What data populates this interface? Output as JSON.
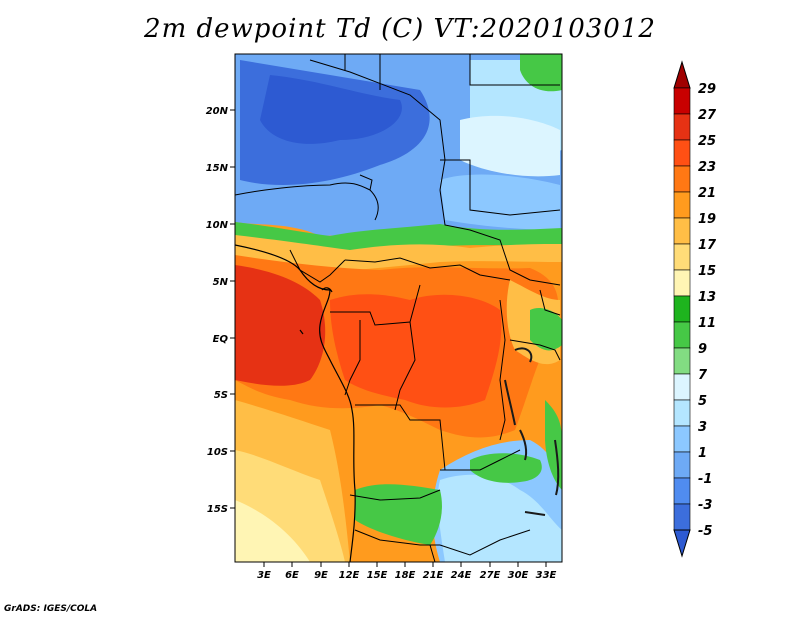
{
  "title": "2m dewpoint Td (C) VT:2020103012",
  "credit": "GrADS: IGES/COLA",
  "map": {
    "lat_labels": [
      "20N",
      "15N",
      "10N",
      "5N",
      "EQ",
      "5S",
      "10S",
      "15S"
    ],
    "lon_labels": [
      "3E",
      "6E",
      "9E",
      "12E",
      "15E",
      "18E",
      "21E",
      "24E",
      "27E",
      "30E",
      "33E"
    ]
  },
  "colorbar": {
    "labels": [
      "29",
      "27",
      "25",
      "23",
      "21",
      "19",
      "17",
      "15",
      "13",
      "11",
      "9",
      "7",
      "5",
      "3",
      "1",
      "-1",
      "-3",
      "-5"
    ],
    "colors": [
      "#a00000",
      "#c80000",
      "#e63214",
      "#ff5014",
      "#ff7814",
      "#ff9b1e",
      "#ffbe46",
      "#ffdc78",
      "#fff5b4",
      "#1eb41e",
      "#46c846",
      "#82dc82",
      "#dcf5ff",
      "#b4e6ff",
      "#8cc8ff",
      "#6eaaf5",
      "#508cf0",
      "#3c6edc",
      "#2d5ad2"
    ]
  },
  "colors": {
    "blue_dark": "#2d5ad2",
    "blue": "#508cf0",
    "blue_light": "#8cc8ff",
    "cyan_light": "#dcf5ff",
    "green": "#46c846",
    "cream": "#fff5b4",
    "yellow": "#ffdc78",
    "orange_light": "#ffbe46",
    "orange": "#ff9b1e",
    "orange_dark": "#ff7814",
    "red_orange": "#ff5014",
    "red": "#e63214"
  }
}
